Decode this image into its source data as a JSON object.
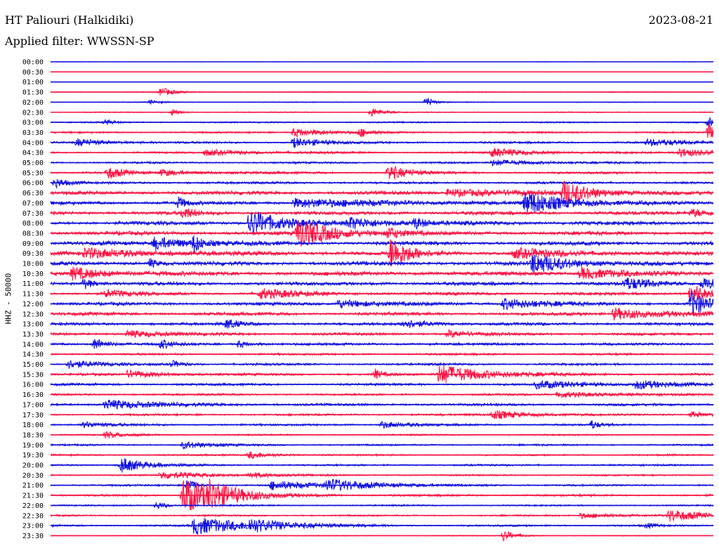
{
  "header": {
    "station": "HT Paliouri (Halkidiki)",
    "date": "2023-08-21",
    "filter_prefix": "Applied filter:",
    "filter_name": "WWSSN-SP",
    "channel": "HHZ - 50000"
  },
  "colors": {
    "even_trace": "#1010e0",
    "odd_trace": "#ff1040",
    "text": "#000000"
  },
  "chart_data": {
    "type": "line",
    "title": "HT Paliouri (Halkidiki)",
    "subtitle": "Applied filter: WWSSN-SP",
    "ylabel": "HHZ - 50000",
    "xlabel": "",
    "grid": false,
    "legend": "none",
    "trace_minutes": 30,
    "rows": [
      {
        "time": "00:00",
        "noise": 0.3,
        "events": []
      },
      {
        "time": "00:30",
        "noise": 0.3,
        "events": []
      },
      {
        "time": "01:00",
        "noise": 0.3,
        "events": []
      },
      {
        "time": "01:30",
        "noise": 0.6,
        "events": [
          {
            "t": 5.0,
            "amp": 7,
            "dur": 0.5
          }
        ]
      },
      {
        "time": "02:00",
        "noise": 0.6,
        "events": [
          {
            "t": 4.5,
            "amp": 3,
            "dur": 0.4
          },
          {
            "t": 17.0,
            "amp": 8,
            "dur": 0.3
          }
        ]
      },
      {
        "time": "02:30",
        "noise": 0.7,
        "events": [
          {
            "t": 5.5,
            "amp": 5,
            "dur": 0.3
          },
          {
            "t": 14.5,
            "amp": 7,
            "dur": 0.5
          }
        ]
      },
      {
        "time": "03:00",
        "noise": 1.0,
        "events": [
          {
            "t": 2.5,
            "amp": 4,
            "dur": 0.3
          },
          {
            "t": 29.8,
            "amp": 8,
            "dur": 0.3
          }
        ]
      },
      {
        "time": "03:30",
        "noise": 1.2,
        "events": [
          {
            "t": 11.0,
            "amp": 6,
            "dur": 1.5
          },
          {
            "t": 14.0,
            "amp": 6,
            "dur": 0.4
          },
          {
            "t": 29.8,
            "amp": 14,
            "dur": 0.2
          }
        ]
      },
      {
        "time": "04:00",
        "noise": 1.4,
        "events": [
          {
            "t": 1.2,
            "amp": 5,
            "dur": 1.3
          },
          {
            "t": 11.0,
            "amp": 7,
            "dur": 1.2
          },
          {
            "t": 27.0,
            "amp": 4,
            "dur": 2.0
          }
        ]
      },
      {
        "time": "04:30",
        "noise": 1.3,
        "events": [
          {
            "t": 7.0,
            "amp": 4,
            "dur": 2.0
          },
          {
            "t": 20.0,
            "amp": 6,
            "dur": 1.6
          },
          {
            "t": 28.5,
            "amp": 6,
            "dur": 1.5
          }
        ]
      },
      {
        "time": "05:00",
        "noise": 1.3,
        "events": [
          {
            "t": 20.0,
            "amp": 4,
            "dur": 2.0
          }
        ]
      },
      {
        "time": "05:30",
        "noise": 1.6,
        "events": [
          {
            "t": 2.6,
            "amp": 9,
            "dur": 0.6
          },
          {
            "t": 15.3,
            "amp": 11,
            "dur": 0.8
          },
          {
            "t": 5.0,
            "amp": 4,
            "dur": 1.5
          }
        ]
      },
      {
        "time": "06:00",
        "noise": 1.6,
        "events": [
          {
            "t": 0.2,
            "amp": 7,
            "dur": 0.5
          }
        ]
      },
      {
        "time": "06:30",
        "noise": 2.4,
        "events": [
          {
            "t": 23.2,
            "amp": 16,
            "dur": 1.2
          },
          {
            "t": 18.0,
            "amp": 5,
            "dur": 3.0
          }
        ]
      },
      {
        "time": "07:00",
        "noise": 2.4,
        "events": [
          {
            "t": 21.5,
            "amp": 15,
            "dur": 1.8
          },
          {
            "t": 11.0,
            "amp": 6,
            "dur": 3.5
          },
          {
            "t": 5.8,
            "amp": 8,
            "dur": 0.3
          }
        ]
      },
      {
        "time": "07:30",
        "noise": 2.4,
        "events": [
          {
            "t": 6.0,
            "amp": 8,
            "dur": 0.5
          },
          {
            "t": 29.0,
            "amp": 5,
            "dur": 1.0
          }
        ]
      },
      {
        "time": "08:00",
        "noise": 2.6,
        "events": [
          {
            "t": 9.0,
            "amp": 20,
            "dur": 1.2
          },
          {
            "t": 13.5,
            "amp": 8,
            "dur": 1.5
          },
          {
            "t": 16.5,
            "amp": 8,
            "dur": 0.4
          }
        ]
      },
      {
        "time": "08:30",
        "noise": 2.6,
        "events": [
          {
            "t": 11.2,
            "amp": 20,
            "dur": 1.5
          },
          {
            "t": 15.3,
            "amp": 8,
            "dur": 0.5
          }
        ]
      },
      {
        "time": "09:00",
        "noise": 2.6,
        "events": [
          {
            "t": 4.7,
            "amp": 9,
            "dur": 1.5
          },
          {
            "t": 6.5,
            "amp": 12,
            "dur": 0.3
          }
        ]
      },
      {
        "time": "09:30",
        "noise": 2.8,
        "events": [
          {
            "t": 15.4,
            "amp": 22,
            "dur": 0.8
          },
          {
            "t": 1.5,
            "amp": 6,
            "dur": 2.5
          },
          {
            "t": 21.0,
            "amp": 6,
            "dur": 2.0
          }
        ]
      },
      {
        "time": "10:00",
        "noise": 2.6,
        "events": [
          {
            "t": 21.8,
            "amp": 14,
            "dur": 1.5
          },
          {
            "t": 4.5,
            "amp": 7,
            "dur": 0.3
          }
        ]
      },
      {
        "time": "10:30",
        "noise": 2.8,
        "events": [
          {
            "t": 1.0,
            "amp": 8,
            "dur": 1.5
          },
          {
            "t": 24.0,
            "amp": 8,
            "dur": 1.5
          }
        ]
      },
      {
        "time": "11:00",
        "noise": 2.4,
        "events": [
          {
            "t": 1.5,
            "amp": 8,
            "dur": 0.4
          },
          {
            "t": 26.0,
            "amp": 8,
            "dur": 1.2
          },
          {
            "t": 29.5,
            "amp": 8,
            "dur": 1.2
          }
        ]
      },
      {
        "time": "11:30",
        "noise": 2.0,
        "events": [
          {
            "t": 2.5,
            "amp": 5,
            "dur": 1.0
          },
          {
            "t": 9.5,
            "amp": 7,
            "dur": 1.5
          },
          {
            "t": 29.0,
            "amp": 16,
            "dur": 0.6
          }
        ]
      },
      {
        "time": "12:00",
        "noise": 2.2,
        "events": [
          {
            "t": 29.0,
            "amp": 18,
            "dur": 0.8
          },
          {
            "t": 20.5,
            "amp": 8,
            "dur": 1.5
          },
          {
            "t": 13.0,
            "amp": 6,
            "dur": 1.5
          }
        ]
      },
      {
        "time": "12:30",
        "noise": 2.2,
        "events": [
          {
            "t": 25.5,
            "amp": 8,
            "dur": 2.0
          }
        ]
      },
      {
        "time": "13:00",
        "noise": 2.0,
        "events": [
          {
            "t": 8.0,
            "amp": 7,
            "dur": 0.5
          },
          {
            "t": 16.0,
            "amp": 6,
            "dur": 1.0
          }
        ]
      },
      {
        "time": "13:30",
        "noise": 1.8,
        "events": [
          {
            "t": 3.5,
            "amp": 5,
            "dur": 1.5
          },
          {
            "t": 18.0,
            "amp": 5,
            "dur": 1.0
          }
        ]
      },
      {
        "time": "14:00",
        "noise": 1.8,
        "events": [
          {
            "t": 2.0,
            "amp": 9,
            "dur": 0.5
          },
          {
            "t": 5.0,
            "amp": 6,
            "dur": 0.5
          },
          {
            "t": 8.5,
            "amp": 5,
            "dur": 0.5
          }
        ]
      },
      {
        "time": "14:30",
        "noise": 1.4,
        "events": []
      },
      {
        "time": "15:00",
        "noise": 1.5,
        "events": [
          {
            "t": 0.8,
            "amp": 6,
            "dur": 1.2
          },
          {
            "t": 5.5,
            "amp": 5,
            "dur": 0.5
          }
        ]
      },
      {
        "time": "15:30",
        "noise": 1.6,
        "events": [
          {
            "t": 17.6,
            "amp": 14,
            "dur": 2.0
          },
          {
            "t": 3.5,
            "amp": 5,
            "dur": 1.5
          },
          {
            "t": 14.7,
            "amp": 7,
            "dur": 0.3
          }
        ]
      },
      {
        "time": "16:00",
        "noise": 1.6,
        "events": [
          {
            "t": 22.0,
            "amp": 5,
            "dur": 2.5
          },
          {
            "t": 26.5,
            "amp": 6,
            "dur": 1.2
          }
        ]
      },
      {
        "time": "16:30",
        "noise": 1.4,
        "events": [
          {
            "t": 23.0,
            "amp": 4,
            "dur": 2.0
          }
        ]
      },
      {
        "time": "17:00",
        "noise": 1.7,
        "events": [
          {
            "t": 2.5,
            "amp": 7,
            "dur": 2.0
          }
        ]
      },
      {
        "time": "17:30",
        "noise": 1.4,
        "events": [
          {
            "t": 20.0,
            "amp": 6,
            "dur": 1.5
          },
          {
            "t": 29.0,
            "amp": 4,
            "dur": 0.8
          }
        ]
      },
      {
        "time": "18:00",
        "noise": 1.4,
        "events": [
          {
            "t": 1.5,
            "amp": 4,
            "dur": 1.0
          },
          {
            "t": 15.0,
            "amp": 5,
            "dur": 1.0
          },
          {
            "t": 24.5,
            "amp": 6,
            "dur": 0.3
          }
        ]
      },
      {
        "time": "18:30",
        "noise": 1.0,
        "events": [
          {
            "t": 2.5,
            "amp": 4,
            "dur": 1.0
          }
        ]
      },
      {
        "time": "19:00",
        "noise": 1.2,
        "events": [
          {
            "t": 6.0,
            "amp": 5,
            "dur": 1.2
          }
        ]
      },
      {
        "time": "19:30",
        "noise": 1.1,
        "events": [
          {
            "t": 9.0,
            "amp": 5,
            "dur": 1.0
          }
        ]
      },
      {
        "time": "20:00",
        "noise": 1.3,
        "events": [
          {
            "t": 3.2,
            "amp": 11,
            "dur": 1.0
          }
        ]
      },
      {
        "time": "20:30",
        "noise": 1.1,
        "events": [
          {
            "t": 5.0,
            "amp": 5,
            "dur": 2.0
          },
          {
            "t": 9.0,
            "amp": 4,
            "dur": 1.0
          }
        ]
      },
      {
        "time": "21:00",
        "noise": 1.3,
        "events": [
          {
            "t": 12.5,
            "amp": 8,
            "dur": 2.0
          },
          {
            "t": 10.0,
            "amp": 6,
            "dur": 2.0
          },
          {
            "t": 6.2,
            "amp": 12,
            "dur": 0.3
          }
        ]
      },
      {
        "time": "21:30",
        "noise": 1.4,
        "events": [
          {
            "t": 6.0,
            "amp": 26,
            "dur": 1.8
          },
          {
            "t": 7.2,
            "amp": 12,
            "dur": 0.8
          }
        ]
      },
      {
        "time": "22:00",
        "noise": 1.0,
        "events": [
          {
            "t": 4.8,
            "amp": 6,
            "dur": 0.4
          }
        ]
      },
      {
        "time": "22:30",
        "noise": 1.1,
        "events": [
          {
            "t": 28.0,
            "amp": 8,
            "dur": 1.5
          },
          {
            "t": 24.0,
            "amp": 4,
            "dur": 1.5
          }
        ]
      },
      {
        "time": "23:00",
        "noise": 1.3,
        "events": [
          {
            "t": 6.5,
            "amp": 12,
            "dur": 2.5
          },
          {
            "t": 9.0,
            "amp": 7,
            "dur": 1.5
          },
          {
            "t": 27.0,
            "amp": 4,
            "dur": 0.3
          }
        ]
      },
      {
        "time": "23:30",
        "noise": 0.6,
        "events": [
          {
            "t": 20.5,
            "amp": 8,
            "dur": 0.5
          }
        ]
      }
    ]
  }
}
